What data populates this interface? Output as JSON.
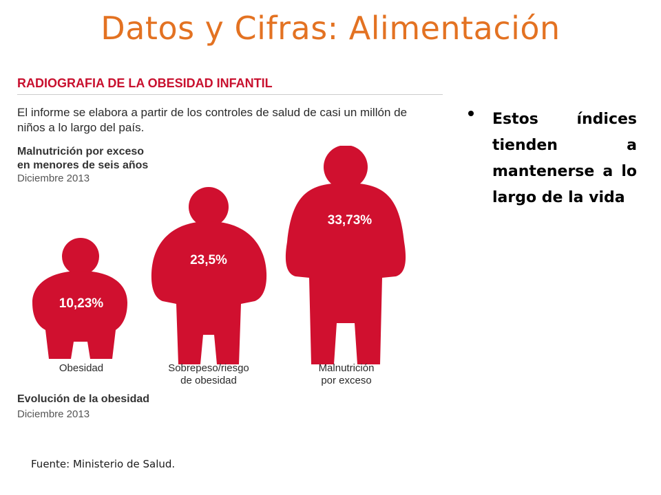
{
  "slide": {
    "title": "Datos y Cifras: Alimentación",
    "source": "Fuente: Ministerio de Salud."
  },
  "infographic": {
    "title": "RADIOGRAFIA DE LA OBESIDAD INFANTIL",
    "intro": "El informe se elabora a partir de los controles de salud de casi un millón de niños a lo largo del país.",
    "section1_heading_line1": "Malnutrición por exceso",
    "section1_heading_line2": "en menores de seis años",
    "section1_date": "Diciembre 2013",
    "figures": [
      {
        "value": "10,23%",
        "label_line1": "Obesidad",
        "label_line2": ""
      },
      {
        "value": "23,5%",
        "label_line1": "Sobrepeso/riesgo",
        "label_line2": "de obesidad"
      },
      {
        "value": "33,73%",
        "label_line1": "Malnutrición",
        "label_line2": "por exceso"
      }
    ],
    "section2_heading": "Evolución de la obesidad",
    "section2_date": "Diciembre 2013",
    "figure_color": "#d0102f"
  },
  "bullets": [
    "Estos índices tienden a mantenerse a lo largo de la vida"
  ]
}
